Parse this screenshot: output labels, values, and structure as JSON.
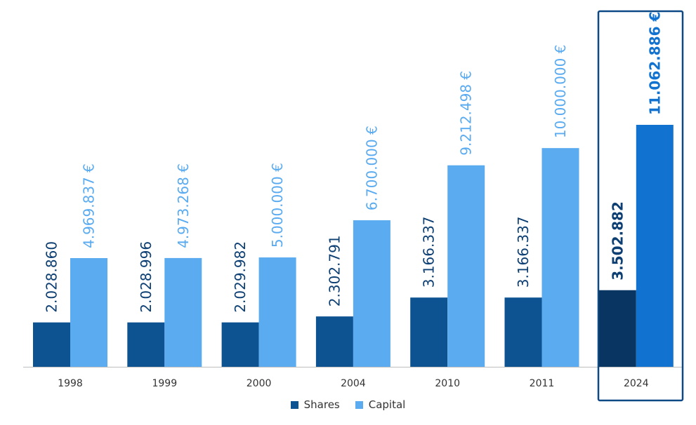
{
  "chart_data": {
    "type": "bar",
    "categories": [
      "1998",
      "1999",
      "2000",
      "2004",
      "2010",
      "2011",
      "2024"
    ],
    "series": [
      {
        "name": "Shares",
        "values": [
          2028860,
          2028996,
          2029982,
          2302791,
          3166337,
          3166337,
          3502882
        ],
        "labels": [
          "2.028.860",
          "2.028.996",
          "2.029.982",
          "2.302.791",
          "3.166.337",
          "3.166.337",
          "3.502.882"
        ],
        "color": "#0d5291",
        "highlight_color": "#083561"
      },
      {
        "name": "Capital",
        "values": [
          4969837,
          4973268,
          5000000,
          6700000,
          9212498,
          10000000,
          11062886
        ],
        "labels": [
          "4.969.837 €",
          "4.973.268 €",
          "5.000.000 €",
          "6.700.000 €",
          "9.212.498 €",
          "10.000.000 €",
          "11.062.886 €"
        ],
        "color": "#5aabf0",
        "highlight_color": "#1272cf"
      }
    ],
    "highlighted_category": "2024",
    "highlight_box_color": "#0d4a85",
    "label_colors": {
      "Shares": "#0d3f73",
      "Capital": "#5aabf0",
      "highlight_capital": "#1272cf"
    },
    "legend_position": "bottom",
    "grid": false
  }
}
